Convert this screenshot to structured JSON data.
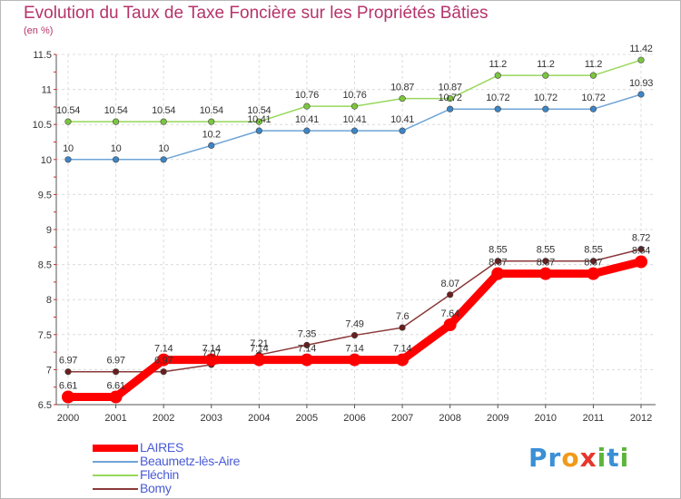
{
  "title": "Evolution du Taux de Taxe Foncière sur les Propriétés Bâties",
  "unit": "(en %)",
  "logo": {
    "text": "Proxiti",
    "letters": [
      "P",
      "r",
      "o",
      "x",
      "i",
      "t",
      "i"
    ],
    "colors": [
      "#3a8fd6",
      "#3a8fd6",
      "#f09a1a",
      "#e8362c",
      "#5bb53a",
      "#3a8fd6",
      "#5bb53a"
    ]
  },
  "chart_data": {
    "type": "line",
    "title": "Evolution du Taux de Taxe Foncière sur les Propriétés Bâties",
    "ylabel": "(en %)",
    "xlabel": "",
    "x": [
      "2000",
      "2001",
      "2002",
      "2003",
      "2004",
      "2005",
      "2006",
      "2007",
      "2008",
      "2009",
      "2010",
      "2011",
      "2012"
    ],
    "ylim": [
      6.5,
      11.5
    ],
    "yticks": [
      6.5,
      7,
      7.5,
      8,
      8.5,
      9,
      9.5,
      10,
      10.5,
      11,
      11.5
    ],
    "ytick_labels": [
      "6.5",
      "7",
      "7.5",
      "8",
      "8.5",
      "9",
      "9.5",
      "10",
      "10.5",
      "11",
      "11.5"
    ],
    "grid": true,
    "legend_position": "bottom-left",
    "series": [
      {
        "name": "LAIRES",
        "color": "#ff0000",
        "values": [
          6.61,
          6.61,
          7.14,
          7.14,
          7.14,
          7.14,
          7.14,
          7.14,
          7.64,
          8.37,
          8.37,
          8.37,
          8.54
        ],
        "labels": [
          "6.61",
          "6.61",
          "7.14",
          "7.14",
          "7.14",
          "7.14",
          "7.14",
          "7.14",
          "7.64",
          "8.37",
          "8.37",
          "8.37",
          "8.54"
        ]
      },
      {
        "name": "Beaumetz-lès-Aire",
        "color": "#6fa4d6",
        "values": [
          10,
          10,
          10,
          10.2,
          10.41,
          10.41,
          10.41,
          10.41,
          10.72,
          10.72,
          10.72,
          10.72,
          10.93
        ],
        "labels": [
          "10",
          "10",
          "10",
          "10.2",
          "10.41",
          "10.41",
          "10.41",
          "10.41",
          "10.72",
          "10.72",
          "10.72",
          "10.72",
          "10.93"
        ]
      },
      {
        "name": "Fléchin",
        "color": "#98d85b",
        "values": [
          10.54,
          10.54,
          10.54,
          10.54,
          10.54,
          10.76,
          10.76,
          10.87,
          10.87,
          11.2,
          11.2,
          11.2,
          11.42
        ],
        "labels": [
          "10.54",
          "10.54",
          "10.54",
          "10.54",
          "10.54",
          "10.76",
          "10.76",
          "10.87",
          "10.87",
          "11.2",
          "11.2",
          "11.2",
          "11.42"
        ]
      },
      {
        "name": "Bomy",
        "color": "#8b3a3a",
        "values": [
          6.97,
          6.97,
          6.97,
          7.07,
          7.21,
          7.35,
          7.49,
          7.6,
          8.07,
          8.55,
          8.55,
          8.55,
          8.72
        ],
        "labels": [
          "6.97",
          "6.97",
          "6.97",
          "7.07",
          "7.21",
          "7.35",
          "7.49",
          "7.6",
          "8.07",
          "8.55",
          "8.55",
          "8.55",
          "8.72"
        ]
      }
    ]
  }
}
